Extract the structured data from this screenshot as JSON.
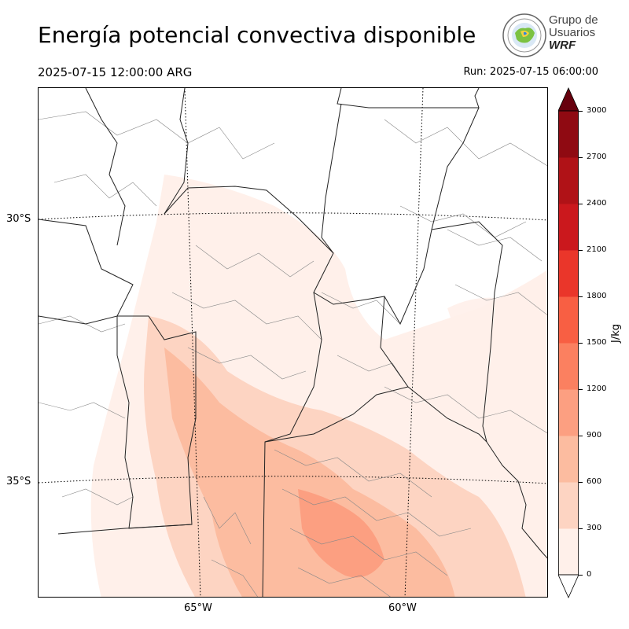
{
  "header": {
    "title": "Energía potencial convectiva disponible",
    "valid_time": "2025-07-15 12:00:00 ARG",
    "run_time": "Run: 2025-07-15 06:00:00"
  },
  "logo": {
    "line1": "Grupo de",
    "line2": "Usuarios",
    "line3": "WRF"
  },
  "map": {
    "lat_labels": [
      "30°S",
      "35°S"
    ],
    "lon_labels": [
      "65°W",
      "60°W"
    ]
  },
  "colorbar": {
    "unit": "J/kg",
    "ticks": [
      "0",
      "300",
      "600",
      "900",
      "1200",
      "1500",
      "1800",
      "2100",
      "2400",
      "2700",
      "3000"
    ],
    "colors": [
      "#fff0ea",
      "#fdd4c2",
      "#fcbca0",
      "#fc9f81",
      "#fb8060",
      "#f85f43",
      "#ea362a",
      "#cb181d",
      "#b01217",
      "#8f0a12",
      "#67000d"
    ]
  }
}
